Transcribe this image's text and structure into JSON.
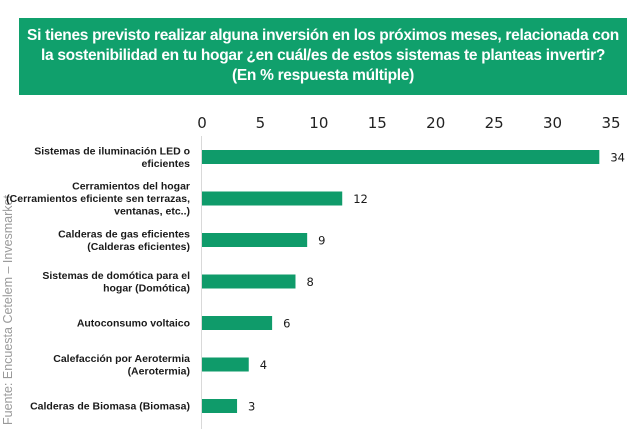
{
  "colors": {
    "accent": "#10a06c",
    "bar": "#0f9b6a",
    "axis": "#d9d9d9"
  },
  "source": "Fuente: Encuesta Cetelem – Invesmarket",
  "chart_data": {
    "type": "bar",
    "orientation": "horizontal",
    "title_lines": [
      "Si tienes previsto realizar alguna inversión en los próximos meses, relacionada con",
      "la sostenibilidad en tu hogar ¿en cuál/es de estos sistemas te planteas invertir?",
      "(En % respuesta múltiple)"
    ],
    "categories": [
      [
        "Sistemas de iluminación LED o",
        "eficientes"
      ],
      [
        "Cerramientos del hogar",
        "(Cerramientos eficiente sen terrazas,",
        "ventanas, etc..)"
      ],
      [
        "Calderas de gas eficientes",
        "(Calderas eficientes)"
      ],
      [
        "Sistemas de domótica para el",
        "hogar (Domótica)"
      ],
      [
        "Autoconsumo voltaico"
      ],
      [
        "Calefacción por Aerotermia",
        "(Aerotermia)"
      ],
      [
        "Calderas de Biomasa (Biomasa)"
      ]
    ],
    "values": [
      34,
      12,
      9,
      8,
      6,
      4,
      3
    ],
    "value_labels": [
      "34",
      "12",
      "9",
      "8",
      "6",
      "4",
      "3"
    ],
    "xlim": [
      0,
      35
    ],
    "xticks": [
      "0",
      "5",
      "10",
      "15",
      "20",
      "25",
      "30",
      "35"
    ],
    "xtick_values": [
      0,
      5,
      10,
      15,
      20,
      25,
      30,
      35
    ],
    "axis_position": "top",
    "grid": false,
    "legend": "none"
  }
}
